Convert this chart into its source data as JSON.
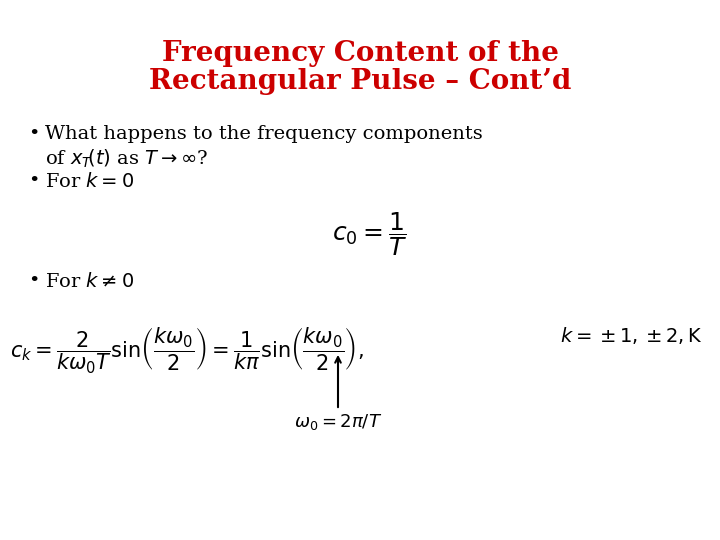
{
  "title_line1": "Frequency Content of the",
  "title_line2": "Rectangular Pulse – Cont’d",
  "title_color": "#cc0000",
  "title_fontsize": 20,
  "body_fontsize": 14,
  "eq_fontsize": 15,
  "small_fontsize": 12,
  "bg_color": "#ffffff"
}
